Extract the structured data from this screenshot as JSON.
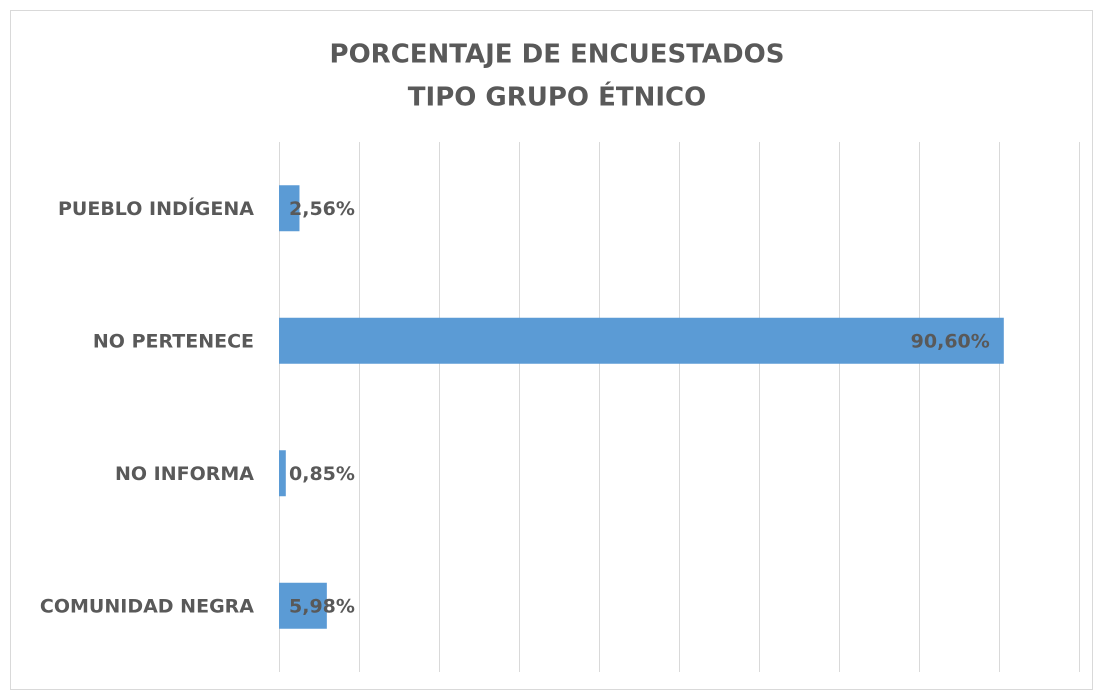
{
  "chart_data": {
    "type": "hbar",
    "title": [
      "PORCENTAJE DE ENCUESTADOS",
      "TIPO GRUPO ÉTNICO"
    ],
    "categories": [
      "PUEBLO INDÍGENA",
      "NO PERTENECE",
      "NO INFORMA",
      "COMUNIDAD NEGRA"
    ],
    "values": [
      2.56,
      90.6,
      0.85,
      5.98
    ],
    "value_labels": [
      "2,56%",
      "90,60%",
      "0,85%",
      "5,98%"
    ],
    "color": "#5b9bd5",
    "xlim": [
      0,
      100
    ],
    "xticks": [
      0,
      10,
      20,
      30,
      40,
      50,
      60,
      70,
      80,
      90,
      100
    ],
    "grid": true
  }
}
